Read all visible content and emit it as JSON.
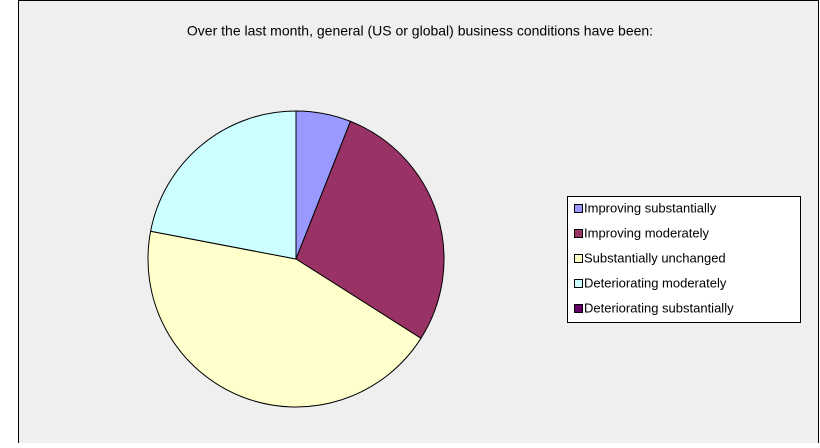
{
  "chart_data": {
    "type": "pie",
    "title": "Over the last month, general (US or global) business conditions have been:",
    "categories": [
      "Improving substantially",
      "Improving moderately",
      "Substantially unchanged",
      "Deteriorating moderately",
      "Deteriorating substantially"
    ],
    "values": [
      6,
      28,
      44,
      22,
      0
    ],
    "colors": [
      "#9999ff",
      "#993366",
      "#ffffcc",
      "#ccffff",
      "#660066"
    ],
    "legend": "right"
  }
}
